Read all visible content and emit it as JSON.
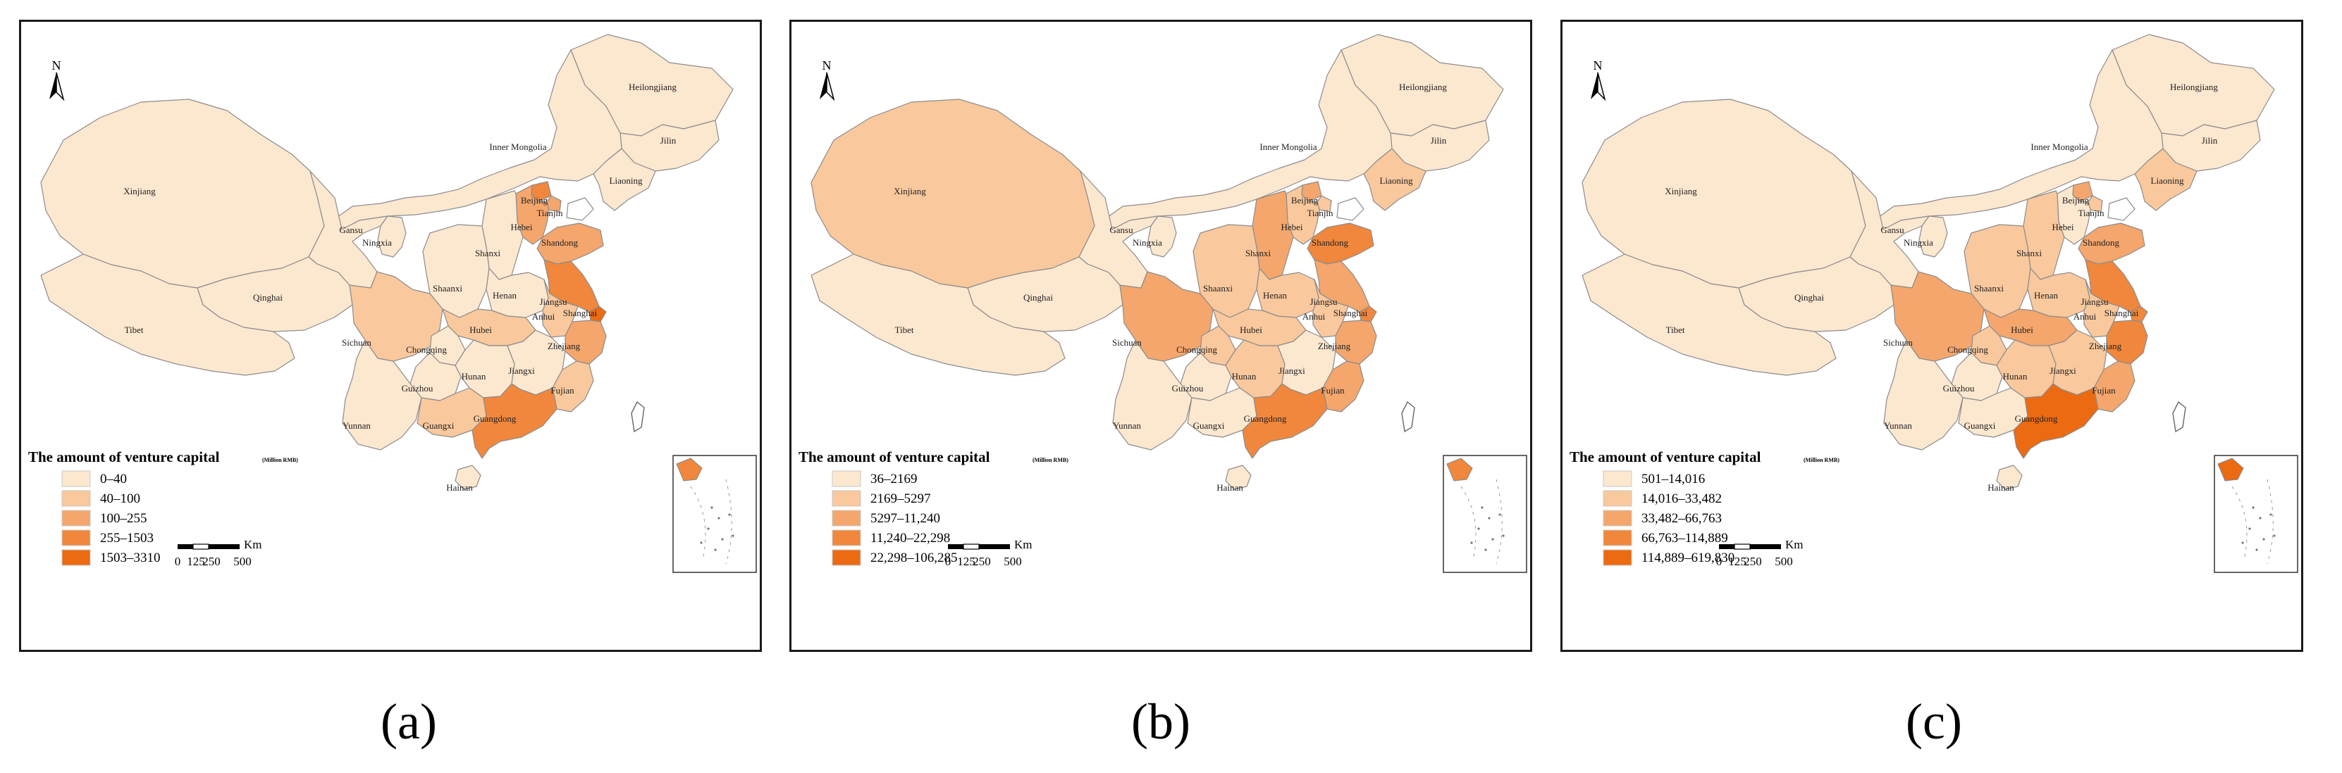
{
  "legend": {
    "title": "The amount of venture capital",
    "unit": "(Million RMB)",
    "colors": [
      "#fce7cf",
      "#f9c89c",
      "#f4a66c",
      "#f0873c",
      "#eb6a12"
    ]
  },
  "north_label": "N",
  "scale": {
    "ticks": [
      "0",
      "125",
      "250",
      "500"
    ],
    "unit": "Km"
  },
  "regions": [
    "Heilongjiang",
    "Jilin",
    "Liaoning",
    "Inner Mongolia",
    "Xinjiang",
    "Beijing",
    "Tianjin",
    "Hebei",
    "Gansu",
    "Ningxia",
    "Shanxi",
    "Shandong",
    "Qinghai",
    "Tibet",
    "Shaanxi",
    "Henan",
    "Jiangsu",
    "Shanghai",
    "Anhui",
    "Sichuan",
    "Hubei",
    "Chongqing",
    "Zhejiang",
    "Hunan",
    "Jiangxi",
    "Guizhou",
    "Fujian",
    "Yunnan",
    "Guangxi",
    "Guangdong",
    "Hainan"
  ],
  "panels": [
    {
      "caption": "(a)",
      "legend_classes": [
        "0–40",
        "40–100",
        "100–255",
        "255–1503",
        "1503–3310"
      ],
      "levels": {
        "Xinjiang": 0,
        "Tibet": 0,
        "Qinghai": 0,
        "Gansu": 0,
        "Ningxia": 0,
        "Inner Mongolia": 0,
        "Heilongjiang": 0,
        "Jilin": 0,
        "Liaoning": 0,
        "Shaanxi": 0,
        "Shanxi": 0,
        "Henan": 0,
        "Yunnan": 0,
        "Guizhou": 0,
        "Hunan": 0,
        "Jiangxi": 0,
        "Hainan": 0,
        "Chongqing": 0,
        "Sichuan": 1,
        "Hubei": 1,
        "Anhui": 1,
        "Fujian": 1,
        "Guangxi": 1,
        "Hebei": 2,
        "Shandong": 2,
        "Zhejiang": 2,
        "Beijing": 3,
        "Tianjin": 2,
        "Guangdong": 3,
        "Jiangsu": 3,
        "Shanghai": 4
      }
    },
    {
      "caption": "(b)",
      "legend_classes": [
        "36–2169",
        "2169–5297",
        "5297–11,240",
        "11,240–22,298",
        "22,298–106,285"
      ],
      "levels": {
        "Xinjiang": 1,
        "Tibet": 0,
        "Qinghai": 0,
        "Gansu": 0,
        "Ningxia": 0,
        "Inner Mongolia": 0,
        "Heilongjiang": 0,
        "Jilin": 0,
        "Liaoning": 1,
        "Shaanxi": 1,
        "Shanxi": 2,
        "Henan": 1,
        "Yunnan": 0,
        "Guizhou": 0,
        "Hunan": 1,
        "Jiangxi": 0,
        "Hainan": 0,
        "Chongqing": 1,
        "Sichuan": 2,
        "Hubei": 1,
        "Anhui": 1,
        "Fujian": 2,
        "Guangxi": 0,
        "Hebei": 1,
        "Shandong": 3,
        "Zhejiang": 2,
        "Beijing": 2,
        "Tianjin": 1,
        "Guangdong": 3,
        "Jiangsu": 2,
        "Shanghai": 3
      }
    },
    {
      "caption": "(c)",
      "legend_classes": [
        "501–14,016",
        "14,016–33,482",
        "33,482–66,763",
        "66,763–114,889",
        "114,889–619,830"
      ],
      "levels": {
        "Xinjiang": 0,
        "Tibet": 0,
        "Qinghai": 0,
        "Gansu": 0,
        "Ningxia": 0,
        "Inner Mongolia": 0,
        "Heilongjiang": 0,
        "Jilin": 0,
        "Liaoning": 1,
        "Shaanxi": 1,
        "Shanxi": 1,
        "Henan": 1,
        "Yunnan": 0,
        "Guizhou": 0,
        "Hunan": 1,
        "Jiangxi": 1,
        "Hainan": 0,
        "Chongqing": 1,
        "Sichuan": 2,
        "Hubei": 2,
        "Anhui": 1,
        "Fujian": 2,
        "Guangxi": 0,
        "Hebei": 0,
        "Shandong": 2,
        "Zhejiang": 3,
        "Beijing": 2,
        "Tianjin": 1,
        "Guangdong": 4,
        "Jiangsu": 3,
        "Shanghai": 3
      }
    }
  ]
}
